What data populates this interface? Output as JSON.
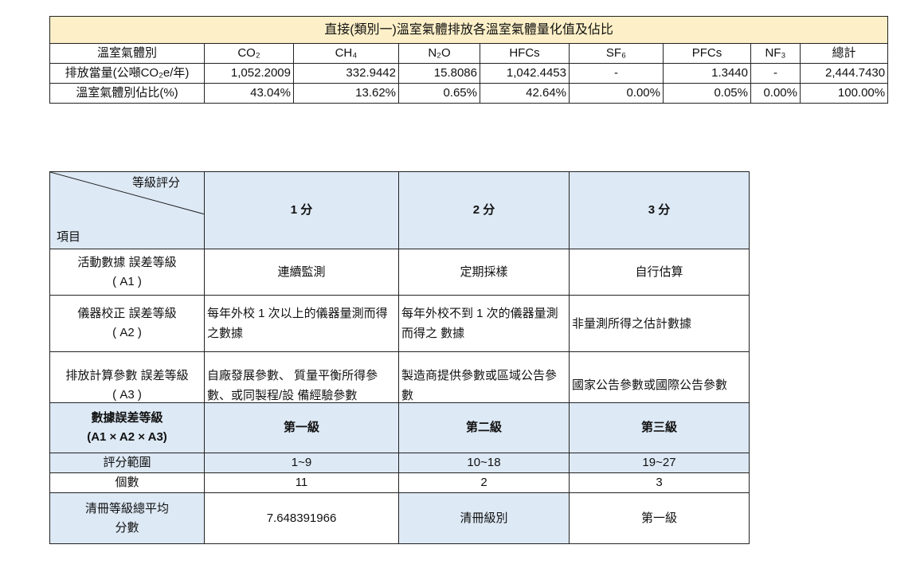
{
  "emission_table": {
    "title": "直接(類別一)溫室氣體排放各溫室氣體量化值及佔比",
    "header": [
      "溫室氣體別",
      "CO₂",
      "CH₄",
      "N₂O",
      "HFCs",
      "SF₆",
      "PFCs",
      "NF₃",
      "總計"
    ],
    "rows": [
      [
        "排放當量(公噸CO₂e/年)",
        "1,052.2009",
        "332.9442",
        "15.8086",
        "1,042.4453",
        "-",
        "1.3440",
        "-",
        "2,444.7430"
      ],
      [
        "溫室氣體別佔比(%)",
        "43.04%",
        "13.62%",
        "0.65%",
        "42.64%",
        "0.00%",
        "0.05%",
        "0.00%",
        "100.00%"
      ]
    ]
  },
  "grading_table": {
    "corner_top": "等級評分",
    "corner_bottom": "項目",
    "header": [
      "1 分",
      "2 分",
      "3 分"
    ],
    "rows": [
      [
        "活動數據 誤差等級\n( A1 )",
        "連續監測",
        "定期採樣",
        "自行估算"
      ],
      [
        "儀器校正 誤差等級\n( A2 )",
        "每年外校 1 次以上的儀器量測而得之數據",
        "每年外校不到 1 次的儀器量測而得之 數據",
        "非量測所得之估計數據"
      ],
      [
        "排放計算參數 誤差等級\n( A3 )",
        "自廠發展參數、 質量平衡所得參 數、或同製程/設 備經驗參數",
        "製造商提供參數或區域公告參數",
        "國家公告參數或國際公告參數"
      ]
    ]
  },
  "summary_table": {
    "header": [
      "數據誤差等級\n(A1 × A2 × A3)",
      "第一級",
      "第二級",
      "第三級"
    ],
    "rows": [
      [
        "評分範圍",
        "1~9",
        "10~18",
        "19~27"
      ],
      [
        "個數",
        "11",
        "2",
        "3"
      ],
      [
        "清冊等級總平均\n分數",
        "7.648391966",
        "清冊級別",
        "第一級"
      ]
    ]
  }
}
